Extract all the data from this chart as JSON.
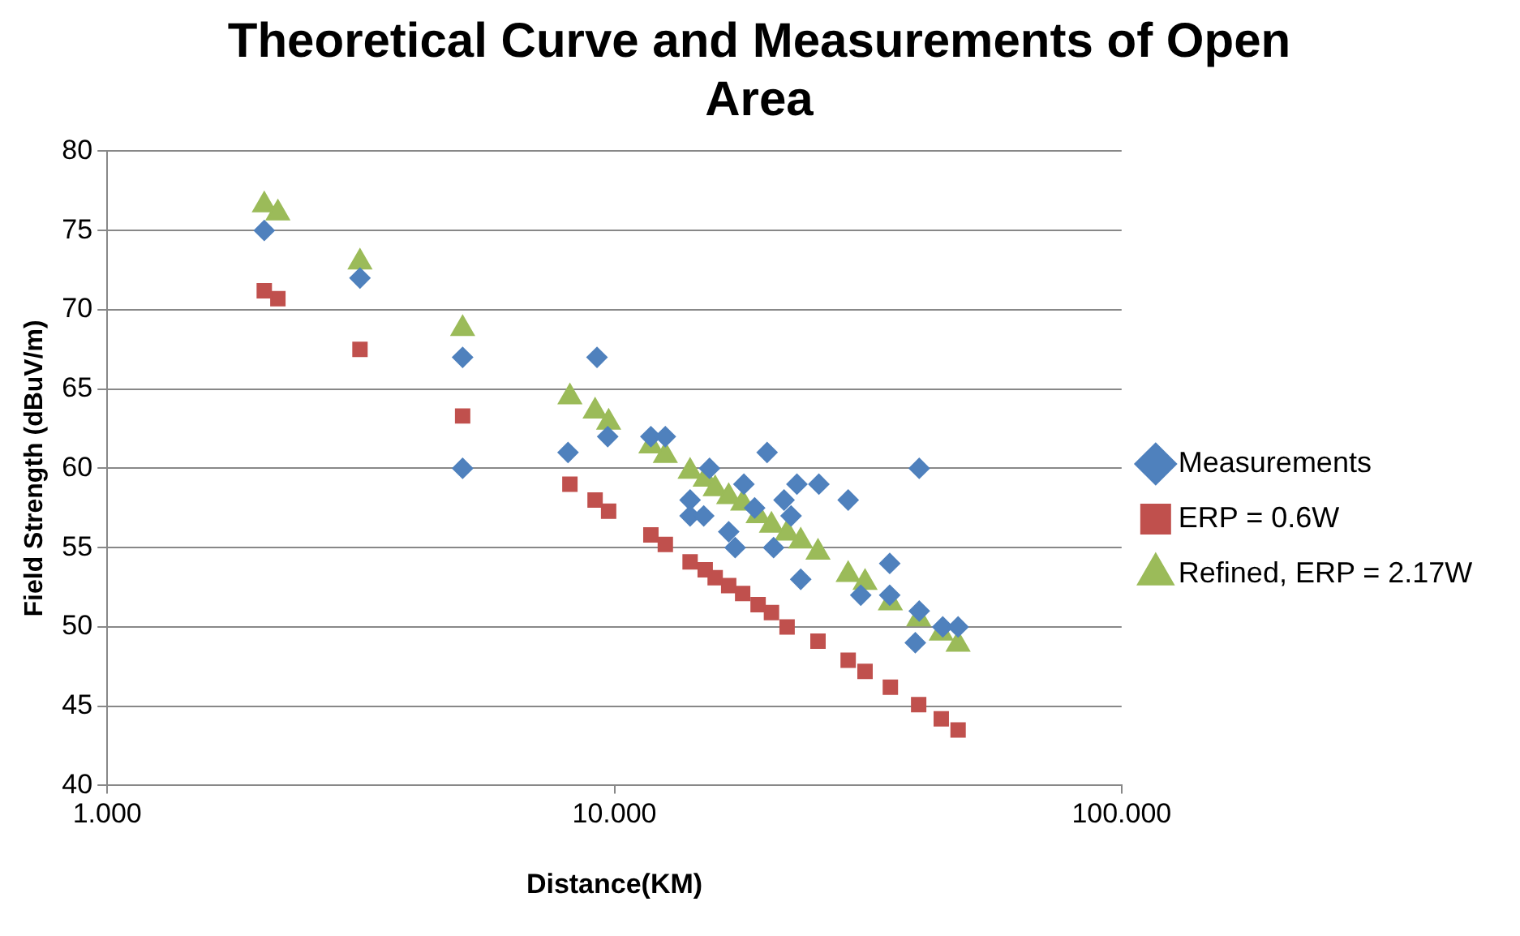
{
  "chart_data": {
    "type": "scatter",
    "title": "Theoretical Curve and Measurements of Open Area",
    "xlabel": "Distance(KM)",
    "ylabel": "Field Strength (dBuV/m)",
    "log": "x",
    "xlim": [
      1,
      100
    ],
    "xticks": [
      {
        "value": 1,
        "label": "1.000"
      },
      {
        "value": 10,
        "label": "10.000"
      },
      {
        "value": 100,
        "label": "100.000"
      }
    ],
    "ylim": [
      40,
      80
    ],
    "yticks": [
      40,
      45,
      50,
      55,
      60,
      65,
      70,
      75,
      80
    ],
    "grid": "y",
    "legend": "right",
    "series": [
      {
        "name": "Measurements",
        "color": "#4f81bd",
        "marker": "diamond",
        "x": [
          2.04,
          3.15,
          5.02,
          5.02,
          9.24,
          8.1,
          9.7,
          11.8,
          12.6,
          15.4,
          18.0,
          20.0,
          22.9,
          25.3,
          28.9,
          39.9,
          14.1,
          14.1,
          15.0,
          16.8,
          17.3,
          21.6,
          20.6,
          23.3,
          34.9,
          30.6,
          34.9,
          39.9,
          39.2,
          44.4,
          47.6,
          22.3,
          18.9
        ],
        "values": [
          75,
          72,
          67,
          60,
          67,
          61,
          62,
          62,
          62,
          60,
          59,
          61,
          59,
          59,
          58,
          60,
          58,
          57,
          57,
          56,
          55,
          58,
          55,
          53,
          54,
          52,
          52,
          51,
          49,
          50,
          50,
          57,
          57.5
        ]
      },
      {
        "name": "ERP = 0.6W",
        "color": "#c0504d",
        "marker": "square",
        "x": [
          2.04,
          2.17,
          3.15,
          5.02,
          8.17,
          9.16,
          9.74,
          11.8,
          12.6,
          14.1,
          15.1,
          15.8,
          16.8,
          17.9,
          19.2,
          20.4,
          21.9,
          25.2,
          28.9,
          31.2,
          35,
          39.8,
          44.1,
          47.6
        ],
        "values": [
          71.2,
          70.7,
          67.5,
          63.3,
          59,
          58,
          57.3,
          55.8,
          55.2,
          54.1,
          53.6,
          53.1,
          52.6,
          52.1,
          51.4,
          50.9,
          50,
          49.1,
          47.9,
          47.2,
          46.2,
          45.1,
          44.2,
          43.5
        ]
      },
      {
        "name": "Refined, ERP = 2.17W",
        "color": "#9bbb59",
        "marker": "triangle",
        "x": [
          2.04,
          2.17,
          3.15,
          5.02,
          8.17,
          9.16,
          9.74,
          11.8,
          12.6,
          14.1,
          15.1,
          15.8,
          16.8,
          17.9,
          19.2,
          20.4,
          21.9,
          23.3,
          25.2,
          28.9,
          31.2,
          35,
          39.8,
          44.1,
          47.6
        ],
        "values": [
          76.6,
          76.1,
          73,
          68.8,
          64.5,
          63.6,
          62.9,
          61.4,
          60.8,
          59.8,
          59.3,
          58.7,
          58.2,
          57.8,
          57,
          56.4,
          55.9,
          55.4,
          54.7,
          53.3,
          52.8,
          51.5,
          50.5,
          49.6,
          48.9
        ]
      }
    ]
  }
}
